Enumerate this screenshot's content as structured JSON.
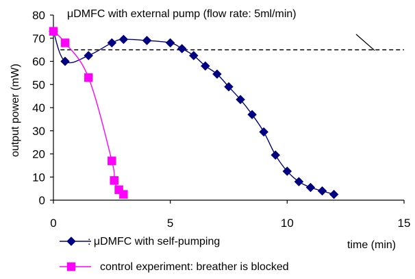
{
  "chart_data": {
    "type": "line",
    "title": "",
    "xlabel": "time (min)",
    "ylabel": "output power (mW)",
    "xlim": [
      0,
      15
    ],
    "ylim": [
      0,
      80
    ],
    "xticks": [
      0,
      5,
      10,
      15
    ],
    "yticks": [
      0,
      10,
      20,
      30,
      40,
      50,
      60,
      70,
      80
    ],
    "grid": false,
    "legend_position": "bottom-left",
    "series": [
      {
        "name": "μDMFC with self-pumping",
        "legend_text": ":   μDMFC with self-pumping",
        "marker": "diamond",
        "color": "#000080",
        "x": [
          0,
          0.5,
          1.5,
          2.5,
          3,
          4,
          5,
          5.5,
          6,
          6.5,
          7,
          7.5,
          8,
          8.5,
          9,
          9.5,
          10,
          10.5,
          11,
          11.5,
          12
        ],
        "y": [
          73,
          60,
          62.5,
          68,
          69.5,
          69,
          68,
          65.5,
          62.5,
          58,
          54.5,
          49,
          43.5,
          37,
          29.5,
          19.5,
          12.5,
          8,
          5.5,
          4,
          2.5
        ]
      },
      {
        "name": "control experiment: breather is blocked",
        "legend_text": "control experiment: breather is blocked",
        "marker": "square",
        "color": "#ff00ff",
        "x": [
          0,
          0.5,
          1.5,
          2.5,
          2.6,
          2.8,
          3
        ],
        "y": [
          73,
          68,
          53,
          17,
          8.5,
          4.5,
          2.5
        ]
      }
    ],
    "reference_line": {
      "y": 65,
      "style": "dashed",
      "color": "#000000",
      "label": "μDMFC with external pump (flow rate: 5ml/min)"
    }
  }
}
